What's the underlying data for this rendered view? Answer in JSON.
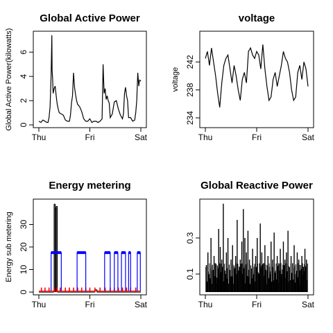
{
  "chart_data": [
    {
      "type": "line",
      "title": "Global Active Power",
      "xlabel": "",
      "ylabel": "Global Active Power(kilowatts)",
      "x_ticks": [
        "Thu",
        "Fri",
        "Sat"
      ],
      "x_range_days": [
        0,
        2
      ],
      "ylim": [
        0,
        7.5
      ],
      "y_ticks": [
        0,
        2,
        4,
        6
      ],
      "grid": false,
      "series": [
        {
          "color": "#000000",
          "x_days": [
            0.0,
            0.04,
            0.08,
            0.12,
            0.16,
            0.18,
            0.2,
            0.22,
            0.24,
            0.255,
            0.26,
            0.27,
            0.28,
            0.3,
            0.32,
            0.34,
            0.36,
            0.38,
            0.4,
            0.44,
            0.48,
            0.52,
            0.56,
            0.6,
            0.62,
            0.64,
            0.66,
            0.68,
            0.7,
            0.72,
            0.74,
            0.76,
            0.78,
            0.8,
            0.84,
            0.88,
            0.92,
            0.96,
            1.0,
            1.04,
            1.08,
            1.12,
            1.16,
            1.2,
            1.24,
            1.26,
            1.28,
            1.3,
            1.32,
            1.34,
            1.36,
            1.38,
            1.4,
            1.44,
            1.48,
            1.52,
            1.56,
            1.6,
            1.64,
            1.66,
            1.68,
            1.7,
            1.72,
            1.74,
            1.76,
            1.8,
            1.84,
            1.88,
            1.9,
            1.92,
            1.94,
            1.96,
            1.97,
            1.98,
            2.0
          ],
          "values": [
            0.3,
            0.2,
            0.4,
            0.3,
            0.2,
            0.2,
            0.6,
            1.5,
            4.0,
            7.4,
            4.5,
            3.8,
            2.6,
            3.0,
            3.2,
            2.4,
            1.7,
            1.3,
            1.0,
            0.9,
            0.8,
            0.4,
            0.3,
            0.3,
            0.8,
            1.8,
            2.4,
            4.3,
            3.1,
            2.5,
            2.0,
            1.7,
            1.6,
            1.5,
            1.1,
            0.5,
            0.3,
            0.3,
            0.5,
            0.2,
            0.3,
            0.3,
            0.2,
            0.3,
            0.5,
            5.0,
            2.6,
            3.0,
            2.1,
            2.4,
            2.0,
            1.8,
            0.6,
            0.9,
            1.9,
            2.0,
            1.3,
            0.8,
            0.5,
            0.9,
            2.6,
            3.1,
            2.4,
            2.0,
            0.6,
            0.6,
            0.3,
            0.4,
            1.0,
            2.0,
            4.3,
            3.2,
            3.6,
            3.7,
            3.6
          ]
        }
      ]
    },
    {
      "type": "line",
      "title": "voltage",
      "xlabel": "",
      "ylabel": "voltage",
      "x_ticks": [
        "Thu",
        "Fri",
        "Sat"
      ],
      "x_range_days": [
        0,
        2
      ],
      "ylim": [
        233,
        246
      ],
      "y_ticks": [
        234,
        238,
        242
      ],
      "grid": false,
      "series": [
        {
          "color": "#000000",
          "x_days": [
            0.0,
            0.04,
            0.08,
            0.12,
            0.16,
            0.2,
            0.24,
            0.28,
            0.32,
            0.36,
            0.4,
            0.44,
            0.48,
            0.52,
            0.56,
            0.6,
            0.64,
            0.68,
            0.72,
            0.76,
            0.8,
            0.84,
            0.88,
            0.92,
            0.96,
            1.0,
            1.04,
            1.08,
            1.12,
            1.16,
            1.2,
            1.24,
            1.28,
            1.32,
            1.36,
            1.4,
            1.44,
            1.48,
            1.52,
            1.56,
            1.6,
            1.64,
            1.68,
            1.72,
            1.76,
            1.8,
            1.84,
            1.88,
            1.92,
            1.96,
            2.0
          ],
          "values": [
            242.5,
            243.5,
            241.5,
            244.0,
            242.0,
            240.0,
            237.5,
            235.5,
            239.0,
            241.5,
            242.5,
            243.0,
            241.0,
            239.0,
            241.5,
            240.0,
            238.0,
            236.5,
            239.5,
            240.5,
            239.0,
            243.5,
            244.0,
            243.0,
            242.5,
            243.5,
            243.0,
            241.0,
            244.5,
            241.0,
            238.5,
            236.5,
            237.0,
            239.5,
            240.5,
            238.5,
            240.0,
            241.5,
            243.5,
            242.5,
            242.0,
            240.5,
            238.0,
            236.5,
            237.0,
            240.5,
            241.5,
            239.5,
            242.0,
            241.0,
            238.5
          ]
        }
      ]
    },
    {
      "type": "line",
      "title": "Energy metering",
      "xlabel": "",
      "ylabel": "Energy sub metering",
      "x_ticks": [
        "Thu",
        "Fri",
        "Sat"
      ],
      "x_range_days": [
        0,
        2
      ],
      "ylim": [
        0,
        40
      ],
      "y_ticks": [
        0,
        10,
        20,
        30
      ],
      "grid": false,
      "series": [
        {
          "color": "#000000",
          "segments_x_days": [
            [
              0.0,
              0.28
            ],
            [
              0.28,
              0.3
            ],
            [
              0.3,
              0.32
            ],
            [
              0.32,
              0.34
            ],
            [
              0.34,
              0.36
            ],
            [
              0.36,
              1.1
            ],
            [
              1.1,
              1.14
            ],
            [
              1.14,
              2.0
            ]
          ],
          "segments_values": [
            0,
            0,
            39,
            37,
            38,
            0,
            1,
            0
          ]
        },
        {
          "color": "#ff0000",
          "spike_x_days": [
            0.05,
            0.12,
            0.2,
            0.3,
            0.36,
            0.42,
            0.52,
            0.6,
            0.68,
            0.76,
            0.84,
            0.92,
            1.0,
            1.1,
            1.2,
            1.3,
            1.4,
            1.48,
            1.56,
            1.64,
            1.72,
            1.8,
            1.9
          ],
          "spike_height": 2
        },
        {
          "color": "#0000ff",
          "blocks_start_days": [
            0.24,
            0.75,
            1.29,
            1.48,
            1.62,
            1.76,
            1.93
          ],
          "blocks_end_days": [
            0.44,
            0.92,
            1.4,
            1.55,
            1.7,
            1.8,
            1.99
          ],
          "level": 17.5
        }
      ]
    },
    {
      "type": "line",
      "title": "Global Reactive Power",
      "xlabel": "",
      "ylabel": "",
      "x_ticks": [
        "Thu",
        "Fri",
        "Sat"
      ],
      "x_range_days": [
        0,
        2
      ],
      "ylim": [
        0,
        0.5
      ],
      "y_ticks": [
        0.1,
        0.3
      ],
      "grid": false,
      "series": [
        {
          "color": "#000000",
          "x_days": [
            0.02,
            0.05,
            0.08,
            0.11,
            0.14,
            0.17,
            0.2,
            0.23,
            0.26,
            0.29,
            0.32,
            0.35,
            0.38,
            0.41,
            0.44,
            0.47,
            0.5,
            0.53,
            0.56,
            0.59,
            0.62,
            0.65,
            0.68,
            0.71,
            0.74,
            0.77,
            0.8,
            0.83,
            0.86,
            0.89,
            0.92,
            0.95,
            0.98,
            1.01,
            1.04,
            1.07,
            1.1,
            1.13,
            1.16,
            1.19,
            1.22,
            1.25,
            1.28,
            1.31,
            1.34,
            1.37,
            1.4,
            1.43,
            1.46,
            1.49,
            1.52,
            1.55,
            1.58,
            1.61,
            1.64,
            1.67,
            1.7,
            1.73,
            1.76,
            1.79,
            1.82,
            1.85,
            1.88,
            1.91,
            1.94,
            1.97
          ],
          "values": [
            0.15,
            0.22,
            0.1,
            0.3,
            0.12,
            0.2,
            0.16,
            0.08,
            0.35,
            0.25,
            0.18,
            0.49,
            0.12,
            0.22,
            0.3,
            0.1,
            0.18,
            0.26,
            0.14,
            0.2,
            0.4,
            0.12,
            0.18,
            0.28,
            0.46,
            0.3,
            0.22,
            0.34,
            0.18,
            0.12,
            0.24,
            0.14,
            0.2,
            0.3,
            0.1,
            0.38,
            0.22,
            0.16,
            0.26,
            0.12,
            0.2,
            0.14,
            0.28,
            0.18,
            0.33,
            0.12,
            0.2,
            0.16,
            0.24,
            0.1,
            0.28,
            0.18,
            0.22,
            0.34,
            0.12,
            0.2,
            0.16,
            0.26,
            0.1,
            0.22,
            0.18,
            0.12,
            0.2,
            0.14,
            0.24,
            0.18
          ]
        }
      ]
    }
  ]
}
